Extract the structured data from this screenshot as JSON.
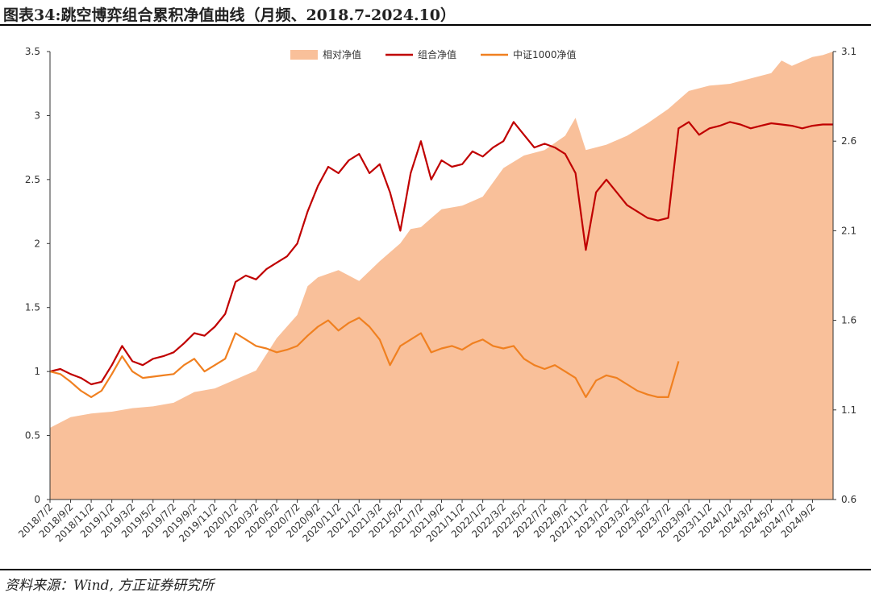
{
  "title": "图表34:跳空博弈组合累积净值曲线（月频、2018.7-2024.10）",
  "source": "资料来源：Wind, 方正证券研究所",
  "chart_data": {
    "type": "line",
    "title": "跳空博弈组合累积净值曲线（月频、2018.7-2024.10）",
    "xlabel": "",
    "ylabel": "",
    "ylim_left": [
      0,
      3.5
    ],
    "ylim_right": [
      0.6,
      3.1
    ],
    "yticks_left": [
      "0",
      "0.5",
      "1",
      "1.5",
      "2",
      "2.5",
      "3",
      "3.5"
    ],
    "yticks_right": [
      "0.6",
      "1.1",
      "1.6",
      "2.1",
      "2.6",
      "3.1"
    ],
    "legend_position": "top-center",
    "x_tick_labels": [
      "2018/7/2",
      "2018/9/2",
      "2018/11/2",
      "2019/1/2",
      "2019/3/2",
      "2019/5/2",
      "2019/7/2",
      "2019/9/2",
      "2019/11/2",
      "2020/1/2",
      "2020/3/2",
      "2020/5/2",
      "2020/7/2",
      "2020/9/2",
      "2020/11/2",
      "2021/1/2",
      "2021/3/2",
      "2021/5/2",
      "2021/7/2",
      "2021/9/2",
      "2021/11/2",
      "2022/1/2",
      "2022/3/2",
      "2022/5/2",
      "2022/7/2",
      "2022/9/2",
      "2022/11/2",
      "2023/1/2",
      "2023/3/2",
      "2023/5/2",
      "2023/7/2",
      "2023/9/2",
      "2023/11/2",
      "2024/1/2",
      "2024/3/2",
      "2024/5/2",
      "2024/7/2",
      "2024/9/2"
    ],
    "series": [
      {
        "name": "相对净值",
        "axis": "right",
        "style": "area",
        "color": "#f9c09a",
        "x": [
          0,
          2,
          4,
          6,
          8,
          10,
          12,
          14,
          16,
          18,
          20,
          22,
          24,
          25,
          26,
          28,
          30,
          32,
          34,
          35,
          36,
          37,
          38,
          40,
          42,
          44,
          46,
          48,
          50,
          51,
          52,
          54,
          56,
          58,
          60,
          62,
          64,
          66,
          68,
          70,
          71,
          72,
          74,
          75,
          76
        ],
        "values": [
          1.0,
          1.06,
          1.08,
          1.09,
          1.11,
          1.12,
          1.14,
          1.2,
          1.22,
          1.27,
          1.32,
          1.5,
          1.63,
          1.79,
          1.84,
          1.88,
          1.82,
          1.93,
          2.03,
          2.11,
          2.12,
          2.17,
          2.22,
          2.24,
          2.29,
          2.45,
          2.52,
          2.55,
          2.63,
          2.73,
          2.55,
          2.58,
          2.63,
          2.7,
          2.78,
          2.88,
          2.91,
          2.92,
          2.95,
          2.98,
          3.05,
          3.02,
          3.07,
          3.08,
          3.1
        ]
      },
      {
        "name": "组合净值",
        "axis": "left",
        "style": "line",
        "color": "#c00000",
        "x": [
          0,
          1,
          2,
          3,
          4,
          5,
          6,
          7,
          8,
          9,
          10,
          11,
          12,
          13,
          14,
          15,
          16,
          17,
          18,
          19,
          20,
          21,
          22,
          23,
          24,
          25,
          26,
          27,
          28,
          29,
          30,
          31,
          32,
          33,
          34,
          35,
          36,
          37,
          38,
          39,
          40,
          41,
          42,
          43,
          44,
          45,
          46,
          47,
          48,
          49,
          50,
          51,
          52,
          53,
          54,
          55,
          56,
          57,
          58,
          59,
          60,
          61,
          62,
          63,
          64,
          65,
          66,
          67,
          68,
          69,
          70,
          71,
          72,
          73,
          74,
          75,
          76
        ],
        "values": [
          1.0,
          1.02,
          0.98,
          0.95,
          0.9,
          0.92,
          1.05,
          1.2,
          1.08,
          1.05,
          1.1,
          1.12,
          1.15,
          1.22,
          1.3,
          1.28,
          1.35,
          1.45,
          1.7,
          1.75,
          1.72,
          1.8,
          1.85,
          1.9,
          2.0,
          2.25,
          2.45,
          2.6,
          2.55,
          2.65,
          2.7,
          2.55,
          2.62,
          2.4,
          2.1,
          2.55,
          2.8,
          2.5,
          2.65,
          2.6,
          2.62,
          2.72,
          2.68,
          2.75,
          2.8,
          2.95,
          2.85,
          2.75,
          2.78,
          2.75,
          2.7,
          2.55,
          1.95,
          2.4,
          2.5,
          2.4,
          2.3,
          2.25,
          2.2,
          2.18,
          2.2,
          2.9,
          2.95,
          2.85,
          2.9,
          2.92,
          2.95,
          2.93,
          2.9,
          2.92,
          2.94,
          2.93,
          2.92,
          2.9,
          2.92,
          2.93,
          2.93
        ]
      },
      {
        "name": "中证1000净值",
        "axis": "left",
        "style": "line",
        "color": "#f08020",
        "x": [
          0,
          1,
          2,
          3,
          4,
          5,
          6,
          7,
          8,
          9,
          10,
          11,
          12,
          13,
          14,
          15,
          16,
          17,
          18,
          19,
          20,
          21,
          22,
          23,
          24,
          25,
          26,
          27,
          28,
          29,
          30,
          31,
          32,
          33,
          34,
          35,
          36,
          37,
          38,
          39,
          40,
          41,
          42,
          43,
          44,
          45,
          46,
          47,
          48,
          49,
          50,
          51,
          52,
          53,
          54,
          55,
          56,
          57,
          58,
          59,
          60,
          61
        ],
        "values": [
          1.0,
          0.98,
          0.92,
          0.85,
          0.8,
          0.85,
          0.98,
          1.12,
          1.0,
          0.95,
          0.96,
          0.97,
          0.98,
          1.05,
          1.1,
          1.0,
          1.05,
          1.1,
          1.3,
          1.25,
          1.2,
          1.18,
          1.15,
          1.17,
          1.2,
          1.28,
          1.35,
          1.4,
          1.32,
          1.38,
          1.42,
          1.35,
          1.25,
          1.05,
          1.2,
          1.25,
          1.3,
          1.15,
          1.18,
          1.2,
          1.17,
          1.22,
          1.25,
          1.2,
          1.18,
          1.2,
          1.1,
          1.05,
          1.02,
          1.05,
          1.0,
          0.95,
          0.8,
          0.93,
          0.97,
          0.95,
          0.9,
          0.85,
          0.82,
          0.8,
          0.8,
          1.08
        ]
      }
    ]
  }
}
